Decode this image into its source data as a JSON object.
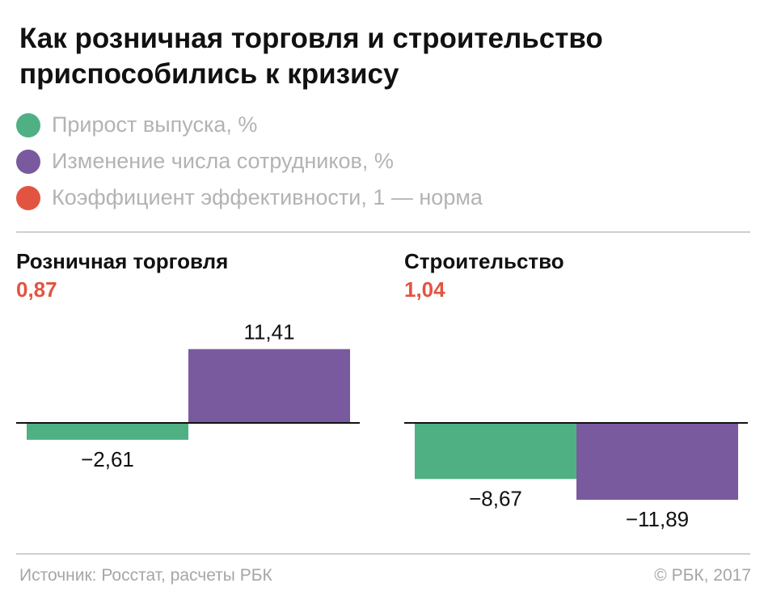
{
  "title": "Как розничная торговля и строительство приспособились к кризису",
  "legend": [
    {
      "label": "Прирост выпуска, %",
      "color": "#4fb083"
    },
    {
      "label": "Изменение числа сотрудников, %",
      "color": "#7a5a9e"
    },
    {
      "label": "Коэффициент эффективности, 1 — норма",
      "color": "#e25441"
    }
  ],
  "chart_data": [
    {
      "type": "bar",
      "title": "Розничная торговля",
      "efficiency": "0,87",
      "series": [
        {
          "name": "Прирост выпуска, %",
          "values": [
            -2.61
          ],
          "label": "−2,61"
        },
        {
          "name": "Изменение числа сотрудников, %",
          "values": [
            11.41
          ],
          "label": "11,41"
        }
      ]
    },
    {
      "type": "bar",
      "title": "Строительство",
      "efficiency": "1,04",
      "series": [
        {
          "name": "Прирост выпуска, %",
          "values": [
            -8.67
          ],
          "label": "−8,67"
        },
        {
          "name": "Изменение числа сотрудников, %",
          "values": [
            -11.89
          ],
          "label": "−11,89"
        }
      ]
    }
  ],
  "footer": {
    "source": "Источник: Росстат, расчеты РБК",
    "copyright": "© РБК, 2017"
  }
}
